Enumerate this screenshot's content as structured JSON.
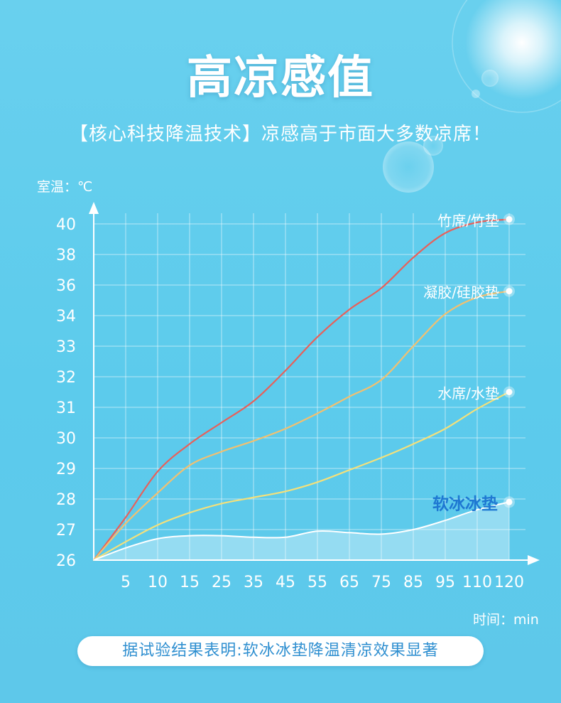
{
  "title": "高凉感值",
  "subtitle": "【核心科技降温技术】凉感高于市面大多数凉席！",
  "conclusion": "据试验结果表明:软冰冰垫降温清凉效果显著",
  "colors": {
    "background": "#5ccbec",
    "grid": "#ffffff",
    "bamboo": "#e8605a",
    "gel": "#f2c070",
    "water": "#f4e07a",
    "ice": "#ffffff",
    "ice_label": "#1e78d2",
    "conclusion_text": "#2f8fd0"
  },
  "chart_data": {
    "type": "line",
    "ylabel": "室温：℃",
    "xlabel": "时间：min",
    "x_ticks": [
      "5",
      "10",
      "15",
      "25",
      "35",
      "45",
      "55",
      "65",
      "75",
      "85",
      "95",
      "110",
      "120"
    ],
    "y_ticks": [
      "26",
      "27",
      "28",
      "29",
      "30",
      "31",
      "32",
      "33",
      "34",
      "36",
      "38",
      "40"
    ],
    "series": [
      {
        "name": "竹席/竹垫",
        "color": "#e8605a",
        "values": [
          26,
          27.4,
          28.9,
          29.8,
          30.5,
          31.2,
          32.2,
          33.3,
          34.4,
          35.8,
          37.8,
          39.4,
          40.1,
          40.3
        ]
      },
      {
        "name": "凝胶/硅胶垫",
        "color": "#f2c070",
        "values": [
          26,
          27.2,
          28.2,
          29.1,
          29.55,
          29.9,
          30.3,
          30.8,
          31.35,
          31.9,
          33.0,
          34.1,
          35.2,
          35.6
        ]
      },
      {
        "name": "水席/水垫",
        "color": "#f4e07a",
        "values": [
          26,
          26.6,
          27.15,
          27.55,
          27.85,
          28.05,
          28.25,
          28.55,
          28.95,
          29.35,
          29.8,
          30.3,
          30.95,
          31.5
        ]
      },
      {
        "name": "软冰冰垫",
        "color": "#ffffff",
        "fill": true,
        "values": [
          26,
          26.4,
          26.7,
          26.8,
          26.8,
          26.75,
          26.75,
          26.95,
          26.9,
          26.85,
          27.0,
          27.3,
          27.65,
          27.9
        ]
      }
    ]
  }
}
